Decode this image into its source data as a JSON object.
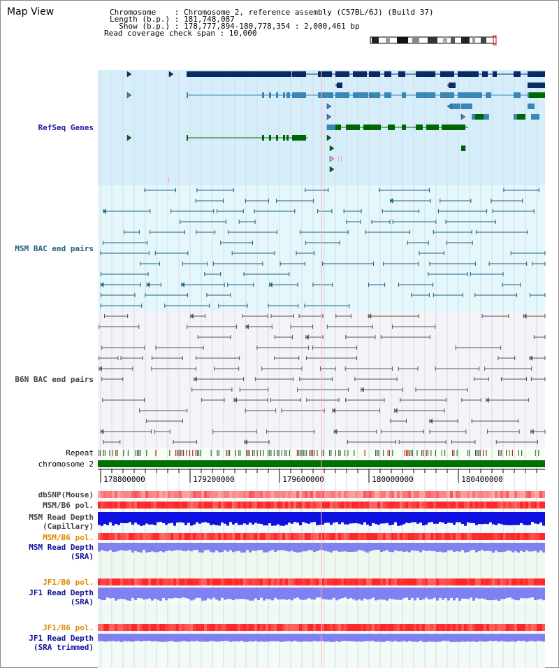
{
  "header": {
    "title": "Map View",
    "chromosome_line": "Chromosome    : Chromosome 2, reference assembly (C57BL/6J) (Build 37)",
    "length_line": "Length (b.p.) : 181,748,087",
    "show_line": "  Show (b.p.) : 178,777,894-180,778,354 : 2,000,461 bp",
    "coverage_line": "Read coverage check span : 10,000"
  },
  "tracks": {
    "refseq": "RefSeq Genes",
    "msm_bac": "MSM BAC end pairs",
    "b6n_bac": "B6N BAC end pairs",
    "repeat": "Repeat",
    "chromosome": "chromosome 2",
    "dbsnp": "dbSNP(Mouse)",
    "msm_b6_pol": "MSM/B6 pol.",
    "msm_depth_cap": "MSM Read Depth\n(Capillary)",
    "msm_b6_pol2": "MSM/B6 pol.",
    "msm_depth_sra": "MSM Read Depth\n(SRA)",
    "jf1_b6_pol": "JF1/B6 pol.",
    "jf1_depth_sra": "JF1 Read Depth\n(SRA)",
    "jf1_b6_pol2": "JF1/B6 pol.",
    "jf1_depth_trim": "JF1 Read Depth\n(SRA trimmed)"
  },
  "axis": {
    "ticks": [
      "178800000",
      "179200000",
      "179600000",
      "180000000",
      "180400000"
    ]
  },
  "colors": {
    "refseq_bg": "#d6eefa",
    "bac_bg": "#e4f7fa",
    "b6n_bg": "#f3f3f8",
    "gene_dark": "#0a2a66",
    "gene_mid": "#3a86b4",
    "gene_green": "#006600",
    "msm_pair": "#1f5f80",
    "b6n_pair": "#555555",
    "chrom_green": "#007000",
    "depth_blue": "#1010e0",
    "depth_light": "#8080f0",
    "pol_red": "#f03030"
  }
}
